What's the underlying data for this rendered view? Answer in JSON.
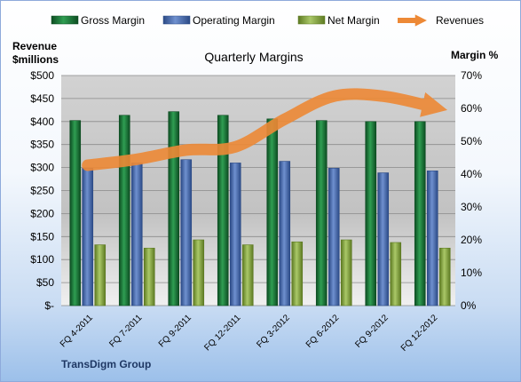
{
  "chart_data": {
    "type": "bar",
    "title": "Quarterly Margins",
    "source_label": "TransDigm Group",
    "ylabel_left_line1": "Revenue",
    "ylabel_left_line2": "$millions",
    "ylabel_right": "Margin %",
    "categories": [
      "FQ 4-2011",
      "FQ 7-2011",
      "FQ 9-2011",
      "FQ 12-2011",
      "FQ 3-2012",
      "FQ 6-2012",
      "FQ 9-2012",
      "FQ 12-2012"
    ],
    "ylim_left": [
      0,
      500
    ],
    "ylim_right": [
      0,
      70
    ],
    "left_ticks": [
      "$-",
      "$50",
      "$100",
      "$150",
      "$200",
      "$250",
      "$300",
      "$350",
      "$400",
      "$450",
      "$500"
    ],
    "right_ticks": [
      "0%",
      "10%",
      "20%",
      "30%",
      "40%",
      "50%",
      "60%",
      "70%"
    ],
    "grid": true,
    "legend_position": "top",
    "series": [
      {
        "name": "Gross Margin",
        "axis": "right",
        "kind": "bar",
        "color": "#1e7a3c",
        "values": [
          56.3,
          57.9,
          59.0,
          57.9,
          56.8,
          56.3,
          56.0,
          56.0
        ]
      },
      {
        "name": "Operating Margin",
        "axis": "right",
        "kind": "bar",
        "color": "#4f72b6",
        "values": [
          41.8,
          43.4,
          44.4,
          43.4,
          43.9,
          41.8,
          40.4,
          41.0
        ]
      },
      {
        "name": "Net Margin",
        "axis": "right",
        "kind": "bar",
        "color": "#8fae45",
        "values": [
          18.5,
          17.5,
          20.0,
          18.5,
          19.4,
          20.0,
          19.2,
          17.5
        ]
      },
      {
        "name": "Revenues",
        "axis": "left",
        "kind": "line",
        "color": "#ed8936",
        "values": [
          305,
          318,
          338,
          345,
          405,
          455,
          455,
          432
        ]
      }
    ]
  }
}
